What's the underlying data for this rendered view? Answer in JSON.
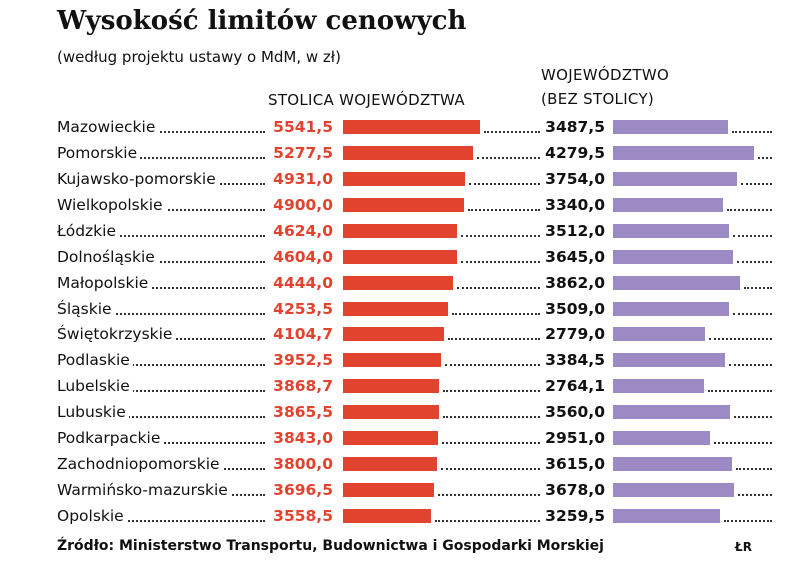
{
  "chart_data": {
    "type": "bar",
    "title": "Wysokość limitów cenowych",
    "subtitle": "(według projektu ustawy o MdM, w zł)",
    "categories": [
      "Mazowieckie",
      "Pomorskie",
      "Kujawsko-pomorskie",
      "Wielkopolskie",
      "Łódzkie",
      "Dolnośląskie",
      "Małopolskie",
      "Śląskie",
      "Świętokrzyskie",
      "Podlaskie",
      "Lubelskie",
      "Lubuskie",
      "Podkarpackie",
      "Zachodniopomorskie",
      "Warmińsko-mazurskie",
      "Opolskie"
    ],
    "series": [
      {
        "name": "STOLICA WOJEWÓDZTWA",
        "color": "#e2432f",
        "value_label_color": "#e2432f",
        "values": [
          5541.5,
          5277.5,
          4931.0,
          4900.0,
          4624.0,
          4604.0,
          4444.0,
          4253.5,
          4104.7,
          3952.5,
          3868.7,
          3865.5,
          3843.0,
          3800.0,
          3696.5,
          3558.5
        ],
        "value_labels": [
          "5541,5",
          "5277,5",
          "4931,0",
          "4900,0",
          "4624,0",
          "4604,0",
          "4444,0",
          "4253,5",
          "4104,7",
          "3952,5",
          "3868,7",
          "3865,5",
          "3843,0",
          "3800,0",
          "3696,5",
          "3558,5"
        ]
      },
      {
        "name": "WOJEWÓDZTWO (BEZ STOLICY)",
        "color": "#9b8ac4",
        "value_label_color": "#111111",
        "values": [
          3487.5,
          4279.5,
          3754.0,
          3340.0,
          3512.0,
          3645.0,
          3862.0,
          3509.0,
          2779.0,
          3384.5,
          2764.1,
          3560.0,
          2951.0,
          3615.0,
          3678.0,
          3259.5
        ],
        "value_labels": [
          "3487,5",
          "4279,5",
          "3754,0",
          "3340,0",
          "3512,0",
          "3645,0",
          "3862,0",
          "3509,0",
          "2779,0",
          "3384,5",
          "2764,1",
          "3560,0",
          "2951,0",
          "3615,0",
          "3678,0",
          "3259,5"
        ]
      }
    ],
    "source": "Źródło: Ministerstwo Transportu, Budownictwa i Gospodarki Morskiej",
    "author": "ŁR"
  }
}
